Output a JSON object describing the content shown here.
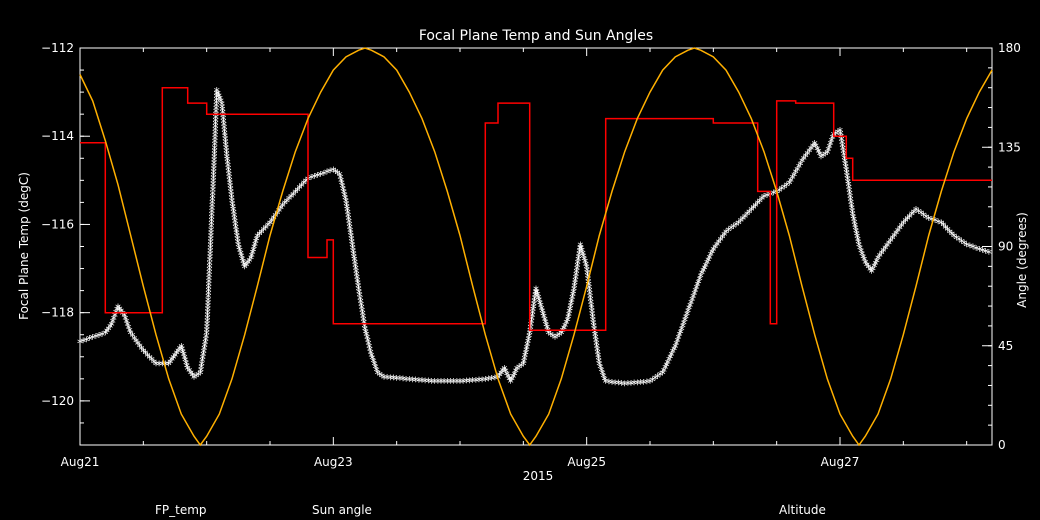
{
  "chart_data": {
    "type": "line",
    "title": "Focal Plane Temp and Sun Angles",
    "xlabel": "2015",
    "ylabel_left": "Focal Plane Temp (degC)",
    "ylabel_right": "Angle (degrees)",
    "xlim": [
      0,
      7.2
    ],
    "ylim_left": [
      -121.0,
      -112.0
    ],
    "ylim_right": [
      0,
      180
    ],
    "x_ticks": [
      {
        "x": 0,
        "label": "Aug21"
      },
      {
        "x": 2,
        "label": "Aug23"
      },
      {
        "x": 4,
        "label": "Aug25"
      },
      {
        "x": 6,
        "label": "Aug27"
      }
    ],
    "y_ticks_left": [
      {
        "v": -112,
        "label": "−112"
      },
      {
        "v": -114,
        "label": "−114"
      },
      {
        "v": -116,
        "label": "−116"
      },
      {
        "v": -118,
        "label": "−118"
      },
      {
        "v": -120,
        "label": "−120"
      }
    ],
    "y_ticks_right": [
      {
        "v": 180,
        "label": "180"
      },
      {
        "v": 135,
        "label": "135"
      },
      {
        "v": 90,
        "label": "90"
      },
      {
        "v": 45,
        "label": "45"
      },
      {
        "v": 0,
        "label": "0"
      }
    ],
    "legend": [
      {
        "label": "FP_temp",
        "color": "#ffffff"
      },
      {
        "label": "Sun angle",
        "color": "#ff0000"
      },
      {
        "label": "Altitude",
        "color": "#ffb000"
      }
    ],
    "series": [
      {
        "name": "FP_temp",
        "axis": "left",
        "marker": "asterisk",
        "color": "#ffffff",
        "points": [
          [
            0.0,
            -118.7
          ],
          [
            0.1,
            -118.6
          ],
          [
            0.2,
            -118.5
          ],
          [
            0.25,
            -118.3
          ],
          [
            0.3,
            -117.9
          ],
          [
            0.35,
            -118.1
          ],
          [
            0.4,
            -118.5
          ],
          [
            0.5,
            -118.9
          ],
          [
            0.6,
            -119.2
          ],
          [
            0.7,
            -119.2
          ],
          [
            0.75,
            -119.0
          ],
          [
            0.8,
            -118.8
          ],
          [
            0.85,
            -119.3
          ],
          [
            0.9,
            -119.5
          ],
          [
            0.95,
            -119.4
          ],
          [
            1.0,
            -118.5
          ],
          [
            1.03,
            -116.5
          ],
          [
            1.06,
            -114.5
          ],
          [
            1.08,
            -113.0
          ],
          [
            1.12,
            -113.3
          ],
          [
            1.16,
            -114.5
          ],
          [
            1.2,
            -115.5
          ],
          [
            1.25,
            -116.5
          ],
          [
            1.3,
            -117.0
          ],
          [
            1.35,
            -116.8
          ],
          [
            1.4,
            -116.3
          ],
          [
            1.5,
            -116.0
          ],
          [
            1.6,
            -115.6
          ],
          [
            1.7,
            -115.3
          ],
          [
            1.8,
            -115.0
          ],
          [
            1.9,
            -114.9
          ],
          [
            2.0,
            -114.8
          ],
          [
            2.05,
            -114.9
          ],
          [
            2.1,
            -115.5
          ],
          [
            2.15,
            -116.5
          ],
          [
            2.2,
            -117.5
          ],
          [
            2.25,
            -118.4
          ],
          [
            2.3,
            -119.0
          ],
          [
            2.35,
            -119.4
          ],
          [
            2.4,
            -119.5
          ],
          [
            2.6,
            -119.55
          ],
          [
            2.8,
            -119.6
          ],
          [
            3.0,
            -119.6
          ],
          [
            3.2,
            -119.55
          ],
          [
            3.3,
            -119.5
          ],
          [
            3.35,
            -119.3
          ],
          [
            3.4,
            -119.6
          ],
          [
            3.45,
            -119.3
          ],
          [
            3.5,
            -119.2
          ],
          [
            3.55,
            -118.5
          ],
          [
            3.6,
            -117.5
          ],
          [
            3.65,
            -118.0
          ],
          [
            3.7,
            -118.5
          ],
          [
            3.75,
            -118.6
          ],
          [
            3.8,
            -118.5
          ],
          [
            3.85,
            -118.2
          ],
          [
            3.9,
            -117.5
          ],
          [
            3.95,
            -116.5
          ],
          [
            4.0,
            -117.0
          ],
          [
            4.05,
            -118.2
          ],
          [
            4.1,
            -119.2
          ],
          [
            4.15,
            -119.6
          ],
          [
            4.3,
            -119.65
          ],
          [
            4.5,
            -119.6
          ],
          [
            4.6,
            -119.4
          ],
          [
            4.7,
            -118.8
          ],
          [
            4.8,
            -118.0
          ],
          [
            4.9,
            -117.2
          ],
          [
            5.0,
            -116.6
          ],
          [
            5.1,
            -116.2
          ],
          [
            5.2,
            -116.0
          ],
          [
            5.3,
            -115.7
          ],
          [
            5.4,
            -115.4
          ],
          [
            5.5,
            -115.3
          ],
          [
            5.6,
            -115.1
          ],
          [
            5.7,
            -114.6
          ],
          [
            5.8,
            -114.2
          ],
          [
            5.85,
            -114.5
          ],
          [
            5.9,
            -114.4
          ],
          [
            5.95,
            -114.0
          ],
          [
            6.0,
            -113.9
          ],
          [
            6.05,
            -114.8
          ],
          [
            6.1,
            -115.8
          ],
          [
            6.15,
            -116.5
          ],
          [
            6.2,
            -116.9
          ],
          [
            6.25,
            -117.1
          ],
          [
            6.3,
            -116.8
          ],
          [
            6.4,
            -116.4
          ],
          [
            6.5,
            -116.0
          ],
          [
            6.6,
            -115.7
          ],
          [
            6.7,
            -115.9
          ],
          [
            6.8,
            -116.0
          ],
          [
            6.9,
            -116.3
          ],
          [
            7.0,
            -116.5
          ],
          [
            7.1,
            -116.6
          ],
          [
            7.2,
            -116.7
          ]
        ]
      },
      {
        "name": "Sun angle",
        "axis": "right",
        "marker": "none",
        "color": "#ff0000",
        "points": [
          [
            0.0,
            137
          ],
          [
            0.2,
            137
          ],
          [
            0.2,
            60
          ],
          [
            0.65,
            60
          ],
          [
            0.65,
            162
          ],
          [
            0.85,
            162
          ],
          [
            0.85,
            155
          ],
          [
            1.0,
            155
          ],
          [
            1.0,
            150
          ],
          [
            1.8,
            150
          ],
          [
            1.8,
            85
          ],
          [
            1.95,
            85
          ],
          [
            1.95,
            93
          ],
          [
            2.0,
            93
          ],
          [
            2.0,
            55
          ],
          [
            3.2,
            55
          ],
          [
            3.2,
            146
          ],
          [
            3.3,
            146
          ],
          [
            3.3,
            155
          ],
          [
            3.55,
            155
          ],
          [
            3.55,
            52
          ],
          [
            4.15,
            52
          ],
          [
            4.15,
            148
          ],
          [
            5.0,
            148
          ],
          [
            5.0,
            146
          ],
          [
            5.35,
            146
          ],
          [
            5.35,
            115
          ],
          [
            5.45,
            115
          ],
          [
            5.45,
            55
          ],
          [
            5.5,
            55
          ],
          [
            5.5,
            156
          ],
          [
            5.65,
            156
          ],
          [
            5.65,
            155
          ],
          [
            5.95,
            155
          ],
          [
            5.95,
            140
          ],
          [
            6.05,
            140
          ],
          [
            6.05,
            130
          ],
          [
            6.1,
            130
          ],
          [
            6.1,
            120
          ],
          [
            6.5,
            120
          ],
          [
            6.5,
            120
          ],
          [
            7.2,
            120
          ]
        ]
      },
      {
        "name": "Altitude",
        "axis": "right",
        "marker": "none",
        "color": "#ffb000",
        "points": [
          [
            0.0,
            168
          ],
          [
            0.1,
            156
          ],
          [
            0.2,
            138
          ],
          [
            0.3,
            118
          ],
          [
            0.4,
            95
          ],
          [
            0.5,
            72
          ],
          [
            0.6,
            50
          ],
          [
            0.7,
            30
          ],
          [
            0.8,
            14
          ],
          [
            0.9,
            4
          ],
          [
            0.95,
            0
          ],
          [
            1.0,
            4
          ],
          [
            1.1,
            14
          ],
          [
            1.2,
            30
          ],
          [
            1.3,
            50
          ],
          [
            1.4,
            72
          ],
          [
            1.5,
            95
          ],
          [
            1.6,
            115
          ],
          [
            1.7,
            133
          ],
          [
            1.8,
            148
          ],
          [
            1.9,
            160
          ],
          [
            2.0,
            170
          ],
          [
            2.1,
            176
          ],
          [
            2.2,
            179
          ],
          [
            2.25,
            180
          ],
          [
            2.3,
            179
          ],
          [
            2.4,
            176
          ],
          [
            2.5,
            170
          ],
          [
            2.6,
            160
          ],
          [
            2.7,
            148
          ],
          [
            2.8,
            133
          ],
          [
            2.9,
            115
          ],
          [
            3.0,
            95
          ],
          [
            3.1,
            72
          ],
          [
            3.2,
            50
          ],
          [
            3.3,
            30
          ],
          [
            3.4,
            14
          ],
          [
            3.5,
            4
          ],
          [
            3.55,
            0
          ],
          [
            3.6,
            4
          ],
          [
            3.7,
            14
          ],
          [
            3.8,
            30
          ],
          [
            3.9,
            50
          ],
          [
            4.0,
            72
          ],
          [
            4.1,
            95
          ],
          [
            4.2,
            115
          ],
          [
            4.3,
            133
          ],
          [
            4.4,
            148
          ],
          [
            4.5,
            160
          ],
          [
            4.6,
            170
          ],
          [
            4.7,
            176
          ],
          [
            4.8,
            179
          ],
          [
            4.85,
            180
          ],
          [
            4.9,
            179
          ],
          [
            5.0,
            176
          ],
          [
            5.1,
            170
          ],
          [
            5.2,
            160
          ],
          [
            5.3,
            148
          ],
          [
            5.4,
            133
          ],
          [
            5.5,
            115
          ],
          [
            5.6,
            95
          ],
          [
            5.7,
            72
          ],
          [
            5.8,
            50
          ],
          [
            5.9,
            30
          ],
          [
            6.0,
            14
          ],
          [
            6.1,
            4
          ],
          [
            6.15,
            0
          ],
          [
            6.2,
            4
          ],
          [
            6.3,
            14
          ],
          [
            6.4,
            30
          ],
          [
            6.5,
            50
          ],
          [
            6.6,
            72
          ],
          [
            6.7,
            95
          ],
          [
            6.8,
            115
          ],
          [
            6.9,
            133
          ],
          [
            7.0,
            148
          ],
          [
            7.1,
            160
          ],
          [
            7.2,
            170
          ]
        ]
      }
    ]
  }
}
